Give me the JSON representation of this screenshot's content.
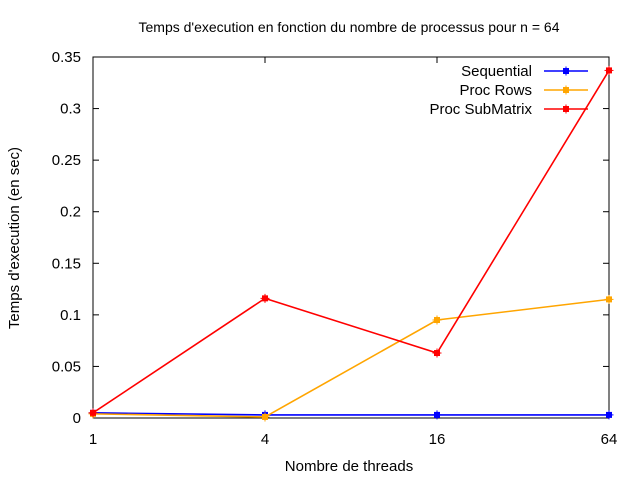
{
  "chart_data": {
    "type": "line",
    "title": "Temps d'execution en fonction du nombre de processus pour n = 64",
    "xlabel": "Nombre de threads",
    "ylabel": "Temps d'execution (en sec)",
    "x_scale": "log",
    "x": [
      1,
      4,
      16,
      64
    ],
    "x_tick_labels": [
      "1",
      "4",
      "16",
      "64"
    ],
    "ylim": [
      0,
      0.35
    ],
    "y_ticks": [
      0,
      0.05,
      0.1,
      0.15,
      0.2,
      0.25,
      0.3,
      0.35
    ],
    "y_tick_labels": [
      "0",
      "0.05",
      "0.1",
      "0.15",
      "0.2",
      "0.25",
      "0.3",
      "0.35"
    ],
    "grid": false,
    "legend_position": "top-right",
    "series": [
      {
        "name": "Sequential",
        "color": "#0000ff",
        "values": [
          0.005,
          0.003,
          0.003,
          0.003
        ]
      },
      {
        "name": "Proc Rows",
        "color": "#ffa500",
        "values": [
          0.004,
          0.001,
          0.095,
          0.115
        ]
      },
      {
        "name": "Proc SubMatrix",
        "color": "#ff0000",
        "values": [
          0.005,
          0.116,
          0.063,
          0.337
        ]
      }
    ]
  }
}
